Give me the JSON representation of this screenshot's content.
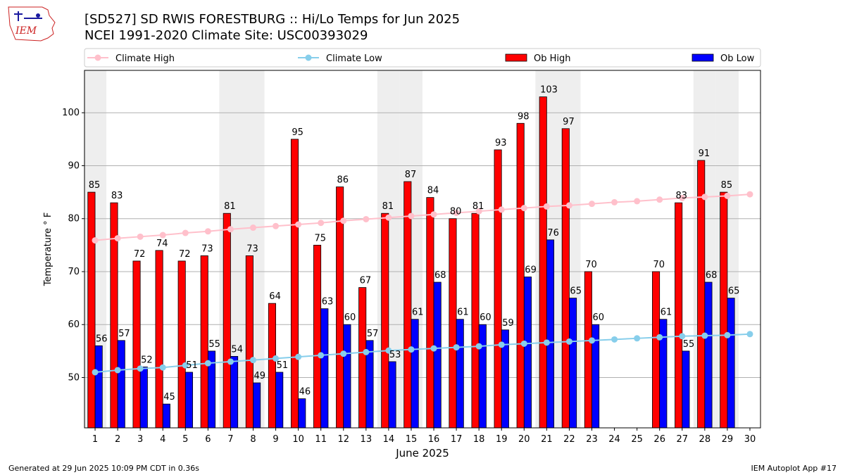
{
  "header": {
    "title_line1": "[SD527] SD RWIS FORESTBURG :: Hi/Lo Temps for Jun 2025",
    "title_line2": "NCEI 1991-2020 Climate Site: USC00393029",
    "logo_text": "IEM"
  },
  "footer": {
    "generated": "Generated at 29 Jun 2025 10:09 PM CDT in 0.36s",
    "app": "IEM Autoplot App #17"
  },
  "colors": {
    "ob_high": "#ff0000",
    "ob_low": "#0000ff",
    "climate_high": "#ffc0cb",
    "climate_low": "#87ceeb",
    "weekend_band": "#eeeeee",
    "grid": "#b0b0b0"
  },
  "chart_data": {
    "type": "bar",
    "xlabel": "June 2025",
    "ylabel": "Temperature ° F",
    "ylim": [
      40.5,
      108
    ],
    "yticks": [
      50,
      60,
      70,
      80,
      90,
      100
    ],
    "x": [
      1,
      2,
      3,
      4,
      5,
      6,
      7,
      8,
      9,
      10,
      11,
      12,
      13,
      14,
      15,
      16,
      17,
      18,
      19,
      20,
      21,
      22,
      23,
      24,
      25,
      26,
      27,
      28,
      29,
      30
    ],
    "weekend_days": [
      1,
      7,
      8,
      14,
      15,
      21,
      22,
      28,
      29
    ],
    "grid": "horizontal",
    "legend": "top",
    "series": [
      {
        "name": "Ob High",
        "kind": "bar",
        "values": [
          85,
          83,
          72,
          74,
          72,
          73,
          81,
          73,
          64,
          95,
          75,
          86,
          67,
          81,
          87,
          84,
          80,
          81,
          93,
          98,
          103,
          97,
          70,
          null,
          null,
          70,
          83,
          91,
          85,
          null
        ]
      },
      {
        "name": "Ob Low",
        "kind": "bar",
        "values": [
          56,
          57,
          52,
          45,
          51,
          55,
          54,
          49,
          51,
          46,
          63,
          60,
          57,
          53,
          61,
          68,
          61,
          60,
          59,
          69,
          76,
          65,
          60,
          null,
          null,
          61,
          55,
          68,
          65,
          null
        ]
      },
      {
        "name": "Climate High",
        "kind": "line",
        "values": [
          75.9,
          76.3,
          76.6,
          76.9,
          77.3,
          77.6,
          78.0,
          78.3,
          78.6,
          78.9,
          79.2,
          79.6,
          79.9,
          80.2,
          80.5,
          80.8,
          81.1,
          81.4,
          81.7,
          82.0,
          82.3,
          82.5,
          82.8,
          83.1,
          83.3,
          83.6,
          83.9,
          84.1,
          84.3,
          84.6
        ]
      },
      {
        "name": "Climate Low",
        "kind": "line",
        "values": [
          51.0,
          51.4,
          51.7,
          51.9,
          52.3,
          52.7,
          53.0,
          53.3,
          53.6,
          53.9,
          54.2,
          54.5,
          54.8,
          55.1,
          55.3,
          55.5,
          55.7,
          55.9,
          56.2,
          56.4,
          56.6,
          56.8,
          57.0,
          57.2,
          57.4,
          57.6,
          57.8,
          57.9,
          58.0,
          58.2
        ]
      }
    ]
  }
}
